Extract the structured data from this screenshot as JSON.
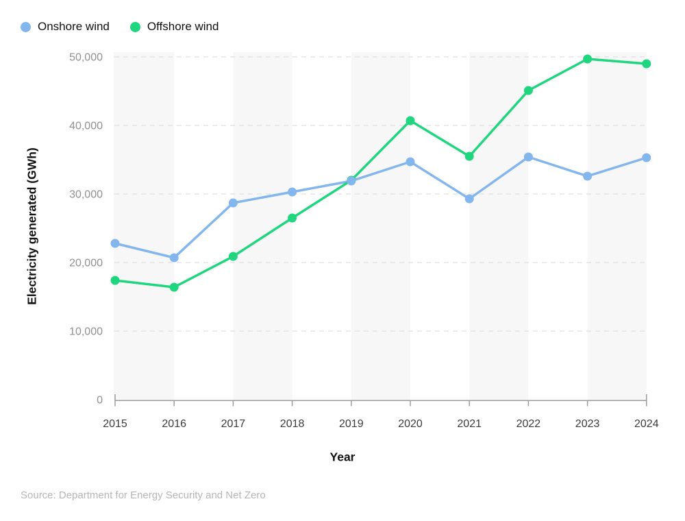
{
  "chart_data": {
    "type": "line",
    "x": [
      2015,
      2016,
      2017,
      2018,
      2019,
      2020,
      2021,
      2022,
      2023,
      2024
    ],
    "series": [
      {
        "name": "Onshore wind",
        "color": "#84b6ee",
        "values": [
          22800,
          20700,
          28700,
          30300,
          31900,
          34700,
          29300,
          35400,
          32600,
          35300
        ]
      },
      {
        "name": "Offshore wind",
        "color": "#1fd67e",
        "values": [
          17400,
          16400,
          20900,
          26500,
          32000,
          40700,
          35500,
          45100,
          49700,
          49000
        ]
      }
    ],
    "xlabel": "Year",
    "ylabel": "Electricity generated (GWh)",
    "ylim": [
      0,
      50000
    ],
    "yticks": [
      0,
      10000,
      20000,
      30000,
      40000,
      50000
    ],
    "ytick_labels": [
      "0",
      "10,000",
      "20,000",
      "30,000",
      "40,000",
      "50,000"
    ],
    "xtick_labels": [
      "2015",
      "2016",
      "2017",
      "2018",
      "2019",
      "2020",
      "2021",
      "2022",
      "2023",
      "2024"
    ],
    "grid": "horizontal-dashed",
    "legend_position": "top-left",
    "style": {
      "band_fill": "#f7f7f8",
      "grid_color": "#d9d9d9",
      "axis_color": "#9b9b9b",
      "xtick_color": "#3a3a3a",
      "ytick_color": "#909090"
    }
  },
  "source": {
    "text": "Source: Department for Energy Security and Net Zero"
  }
}
